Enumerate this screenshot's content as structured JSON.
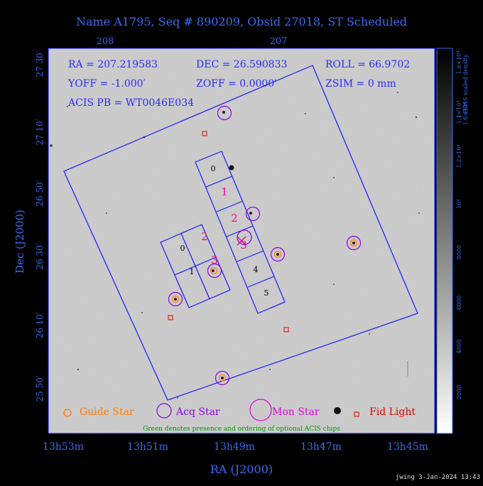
{
  "title": "Name A1795, Seq # 890209, Obsid 27018, ST Scheduled",
  "top_ticks": [
    "208",
    "207"
  ],
  "info": {
    "ra": "RA = 207.219583",
    "dec": "DEC = 26.590833",
    "roll": "ROLL = 66.9702",
    "yoff": "YOFF =  -1.000′",
    "zoff": "ZOFF =  0.0000′",
    "zsim": "ZSIM = 0 mm",
    "acis_pb": "ACIS PB = WT0046E034"
  },
  "dec_ticks": [
    "27 30′",
    "27 10′",
    "26 50′",
    "26 30′",
    "26 10′",
    "25 50′"
  ],
  "ra_ticks": [
    "13h53m",
    "13h51m",
    "13h49m",
    "13h47m",
    "13h45m"
  ],
  "axis_labels": {
    "x": "RA (J2000)",
    "y": "Dec (J2000)"
  },
  "colorbar": {
    "label": "POSS scaled density",
    "ticks": [
      "2000",
      "4000",
      "6000",
      "8000",
      "10⁴",
      "1.2×10⁴",
      "1.4×10⁴",
      "1.6×10⁴",
      "1.8×10⁴"
    ]
  },
  "chips_i": [
    "0",
    "1",
    "2",
    "3"
  ],
  "chips_s": [
    "0",
    "1",
    "2",
    "3",
    "4",
    "5"
  ],
  "legend": {
    "guide": "Guide Star",
    "acq": "Acq Star",
    "mon": "Mon Star",
    "fid": "Fid Light"
  },
  "note": "Green denotes presence and ordering of optional ACIS chips",
  "footer": "jwing  3-Jan-2024 13:43",
  "colors": {
    "background": "#000000",
    "blue_text": "#3a6cf0",
    "frame": "#1a1aff",
    "guide": "#ff7a00",
    "acq": "#8a00e6",
    "mon": "#e000e0",
    "fid": "#e00000",
    "chip_label": "#e0108a",
    "green": "#009a00"
  },
  "icons": [
    "guide-star-icon",
    "acq-star-icon",
    "mon-star-icon",
    "fid-light-icon"
  ]
}
